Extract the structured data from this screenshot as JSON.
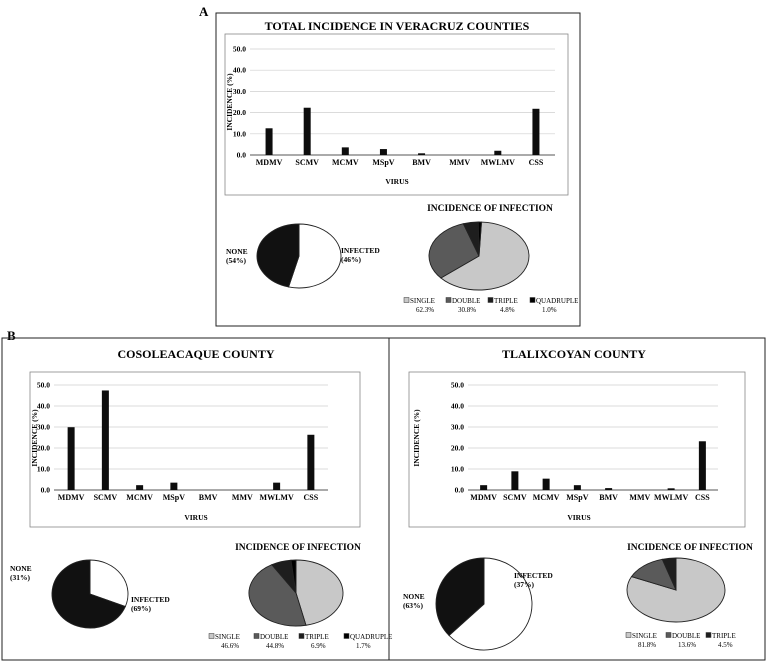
{
  "panel_labels": [
    "A",
    "B"
  ],
  "chart_data": [
    {
      "id": "veracruz",
      "type": "bar",
      "title": "TOTAL INCIDENCE IN VERACRUZ COUNTIES",
      "xlabel": "VIRUS",
      "ylabel": "INCIDENCE  (%)",
      "ylim": [
        0,
        50
      ],
      "yticks": [
        "0.0",
        "10.0",
        "20.0",
        "30.0",
        "40.0",
        "50.0"
      ],
      "categories": [
        "MDMV",
        "SCMV",
        "MCMV",
        "MSpV",
        "BMV",
        "MMV",
        "MWLMV",
        "CSS"
      ],
      "values": [
        12.6,
        22.3,
        3.6,
        2.8,
        0.8,
        0.0,
        2.0,
        21.8
      ],
      "infection_pie": {
        "labels": [
          "NONE\n(54%)",
          "INFECTED\n(46%)"
        ],
        "values": [
          54,
          46
        ],
        "colors": [
          "#ffffff",
          "#111111"
        ]
      },
      "multi_pie": {
        "title": "INCIDENCE OF INFECTION",
        "labels": [
          "SINGLE",
          "DOUBLE",
          "TRIPLE",
          "QUADRUPLE"
        ],
        "values": [
          62.3,
          30.8,
          4.8,
          1.0
        ],
        "display": [
          "62.3%",
          "30.8%",
          "4.8%",
          "1.0%"
        ],
        "colors": [
          "#c8c8c8",
          "#5a5a5a",
          "#1e1e1e",
          "#000000"
        ]
      }
    },
    {
      "id": "cosoleacaque",
      "type": "bar",
      "title": "COSOLEACAQUE COUNTY",
      "xlabel": "VIRUS",
      "ylabel": "INCIDENCE  (%)",
      "ylim": [
        0,
        50
      ],
      "yticks": [
        "0.0",
        "10.0",
        "20.0",
        "30.0",
        "40.0",
        "50.0"
      ],
      "categories": [
        "MDMV",
        "SCMV",
        "MCMV",
        "MSpV",
        "BMV",
        "MMV",
        "MWLMV",
        "CSS"
      ],
      "values": [
        29.9,
        47.4,
        2.3,
        3.5,
        0.0,
        0.0,
        3.5,
        26.3
      ],
      "infection_pie": {
        "labels": [
          "NONE\n(31%)",
          "INFECTED\n(69%)"
        ],
        "values": [
          31,
          69
        ],
        "colors": [
          "#ffffff",
          "#111111"
        ]
      },
      "multi_pie": {
        "title": "INCIDENCE OF INFECTION",
        "labels": [
          "SINGLE",
          "DOUBLE",
          "TRIPLE",
          "QUADRUPLE"
        ],
        "values": [
          46.6,
          44.8,
          6.9,
          1.7
        ],
        "display": [
          "46.6%",
          "44.8%",
          "6.9%",
          "1.7%"
        ],
        "colors": [
          "#c8c8c8",
          "#5a5a5a",
          "#1e1e1e",
          "#000000"
        ]
      }
    },
    {
      "id": "tlalixcoyan",
      "type": "bar",
      "title": "TLALIXCOYAN COUNTY",
      "xlabel": "VIRUS",
      "ylabel": "INCIDENCE  (%)",
      "ylim": [
        0,
        50
      ],
      "yticks": [
        "0.0",
        "10.0",
        "20.0",
        "30.0",
        "40.0",
        "50.0"
      ],
      "categories": [
        "MDMV",
        "SCMV",
        "MCMV",
        "MSpV",
        "BMV",
        "MMV",
        "MWLMV",
        "CSS"
      ],
      "values": [
        2.3,
        8.9,
        5.4,
        2.3,
        0.9,
        0.0,
        0.8,
        23.2
      ],
      "infection_pie": {
        "labels": [
          "NONE\n(63%)",
          "INFECTED\n(37%)"
        ],
        "values": [
          63,
          37
        ],
        "colors": [
          "#ffffff",
          "#111111"
        ]
      },
      "multi_pie": {
        "title": "INCIDENCE OF INFECTION",
        "labels": [
          "SINGLE",
          "DOUBLE",
          "TRIPLE"
        ],
        "values": [
          81.8,
          13.6,
          4.5
        ],
        "display": [
          "81.8%",
          "13.6%",
          "4.5%"
        ],
        "colors": [
          "#c8c8c8",
          "#5a5a5a",
          "#1e1e1e"
        ]
      }
    }
  ]
}
